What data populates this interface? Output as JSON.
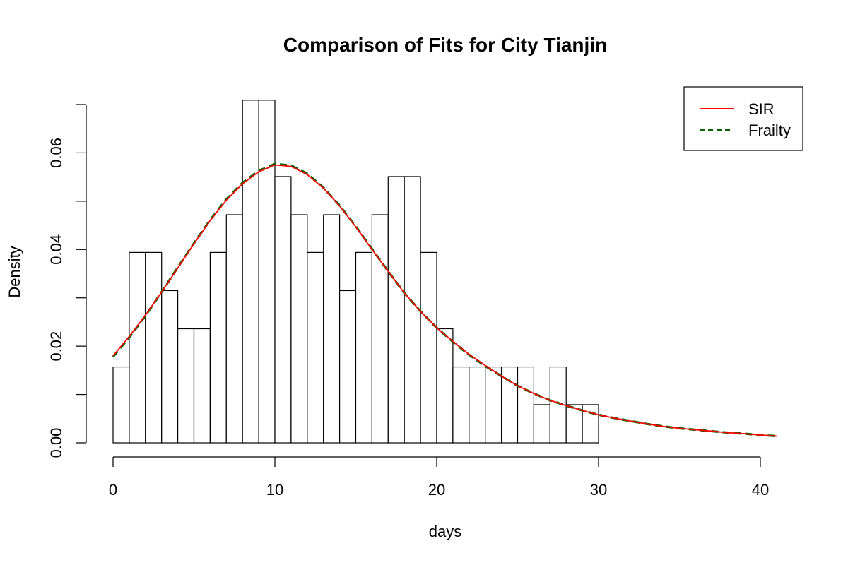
{
  "chart_data": {
    "type": "histogram",
    "title": "Comparison of Fits for City Tianjin",
    "xlabel": "days",
    "ylabel": "Density",
    "xlim": [
      0,
      41
    ],
    "ylim": [
      0,
      0.07
    ],
    "x_ticks": [
      0,
      10,
      20,
      30,
      40
    ],
    "y_ticks": [
      0.0,
      0.02,
      0.04,
      0.06
    ],
    "y_tick_labels": [
      "0.00",
      "0.02",
      "0.04",
      "0.06"
    ],
    "x_tick_labels": [
      "0",
      "10",
      "20",
      "30",
      "40"
    ],
    "bin_width": 1,
    "bins": [
      {
        "x0": 0,
        "x1": 1,
        "density": 0.0157
      },
      {
        "x0": 1,
        "x1": 2,
        "density": 0.0394
      },
      {
        "x0": 2,
        "x1": 3,
        "density": 0.0394
      },
      {
        "x0": 3,
        "x1": 4,
        "density": 0.0315
      },
      {
        "x0": 4,
        "x1": 5,
        "density": 0.0236
      },
      {
        "x0": 5,
        "x1": 6,
        "density": 0.0236
      },
      {
        "x0": 6,
        "x1": 7,
        "density": 0.0394
      },
      {
        "x0": 7,
        "x1": 8,
        "density": 0.0472
      },
      {
        "x0": 8,
        "x1": 9,
        "density": 0.0709
      },
      {
        "x0": 9,
        "x1": 10,
        "density": 0.0709
      },
      {
        "x0": 10,
        "x1": 11,
        "density": 0.0551
      },
      {
        "x0": 11,
        "x1": 12,
        "density": 0.0472
      },
      {
        "x0": 12,
        "x1": 13,
        "density": 0.0394
      },
      {
        "x0": 13,
        "x1": 14,
        "density": 0.0472
      },
      {
        "x0": 14,
        "x1": 15,
        "density": 0.0315
      },
      {
        "x0": 15,
        "x1": 16,
        "density": 0.0394
      },
      {
        "x0": 16,
        "x1": 17,
        "density": 0.0472
      },
      {
        "x0": 17,
        "x1": 18,
        "density": 0.0551
      },
      {
        "x0": 18,
        "x1": 19,
        "density": 0.0551
      },
      {
        "x0": 19,
        "x1": 20,
        "density": 0.0394
      },
      {
        "x0": 20,
        "x1": 21,
        "density": 0.0236
      },
      {
        "x0": 21,
        "x1": 22,
        "density": 0.0157
      },
      {
        "x0": 22,
        "x1": 23,
        "density": 0.0157
      },
      {
        "x0": 23,
        "x1": 24,
        "density": 0.0157
      },
      {
        "x0": 24,
        "x1": 25,
        "density": 0.0157
      },
      {
        "x0": 25,
        "x1": 26,
        "density": 0.0157
      },
      {
        "x0": 26,
        "x1": 27,
        "density": 0.0079
      },
      {
        "x0": 27,
        "x1": 28,
        "density": 0.0157
      },
      {
        "x0": 28,
        "x1": 29,
        "density": 0.0079
      },
      {
        "x0": 29,
        "x1": 30,
        "density": 0.0079
      }
    ],
    "series": [
      {
        "name": "SIR",
        "color": "#ff0000",
        "style": "solid",
        "x": [
          0,
          1,
          2,
          3,
          4,
          5,
          6,
          7,
          8,
          9,
          10,
          11,
          12,
          13,
          14,
          15,
          16,
          17,
          18,
          19,
          20,
          21,
          22,
          23,
          24,
          25,
          26,
          27,
          28,
          29,
          30,
          31,
          32,
          33,
          34,
          35,
          36,
          37,
          38,
          39,
          40,
          41
        ],
        "values": [
          0.018,
          0.022,
          0.0264,
          0.0312,
          0.0362,
          0.0412,
          0.046,
          0.0502,
          0.0536,
          0.0561,
          0.0575,
          0.0572,
          0.0555,
          0.0527,
          0.049,
          0.0447,
          0.04,
          0.0355,
          0.031,
          0.0272,
          0.0238,
          0.021,
          0.0183,
          0.016,
          0.0138,
          0.0118,
          0.0102,
          0.0088,
          0.0077,
          0.0067,
          0.0058,
          0.0051,
          0.0045,
          0.0039,
          0.0034,
          0.003,
          0.0027,
          0.0024,
          0.0021,
          0.0019,
          0.0016,
          0.0014
        ]
      },
      {
        "name": "Frailty",
        "color": "#006400",
        "style": "dashed",
        "x": [
          0,
          1,
          2,
          3,
          4,
          5,
          6,
          7,
          8,
          9,
          10,
          11,
          12,
          13,
          14,
          15,
          16,
          17,
          18,
          19,
          20,
          21,
          22,
          23,
          24,
          25,
          26,
          27,
          28,
          29,
          30,
          31,
          32,
          33,
          34,
          35,
          36,
          37,
          38,
          39,
          40,
          41
        ],
        "values": [
          0.0178,
          0.0218,
          0.0263,
          0.0312,
          0.0363,
          0.0413,
          0.0461,
          0.0504,
          0.0538,
          0.0563,
          0.0577,
          0.0574,
          0.0557,
          0.0528,
          0.0491,
          0.0448,
          0.0401,
          0.0355,
          0.031,
          0.0272,
          0.0238,
          0.0209,
          0.0182,
          0.0159,
          0.0138,
          0.0118,
          0.0102,
          0.0088,
          0.0077,
          0.0067,
          0.0058,
          0.0051,
          0.0045,
          0.0039,
          0.0034,
          0.003,
          0.0027,
          0.0024,
          0.0021,
          0.0019,
          0.0016,
          0.0014
        ]
      }
    ],
    "legend": {
      "position": "top-right",
      "entries": [
        {
          "label": "SIR",
          "color": "#ff0000",
          "style": "solid"
        },
        {
          "label": "Frailty",
          "color": "#006400",
          "style": "dashed"
        }
      ]
    },
    "grid": false
  }
}
